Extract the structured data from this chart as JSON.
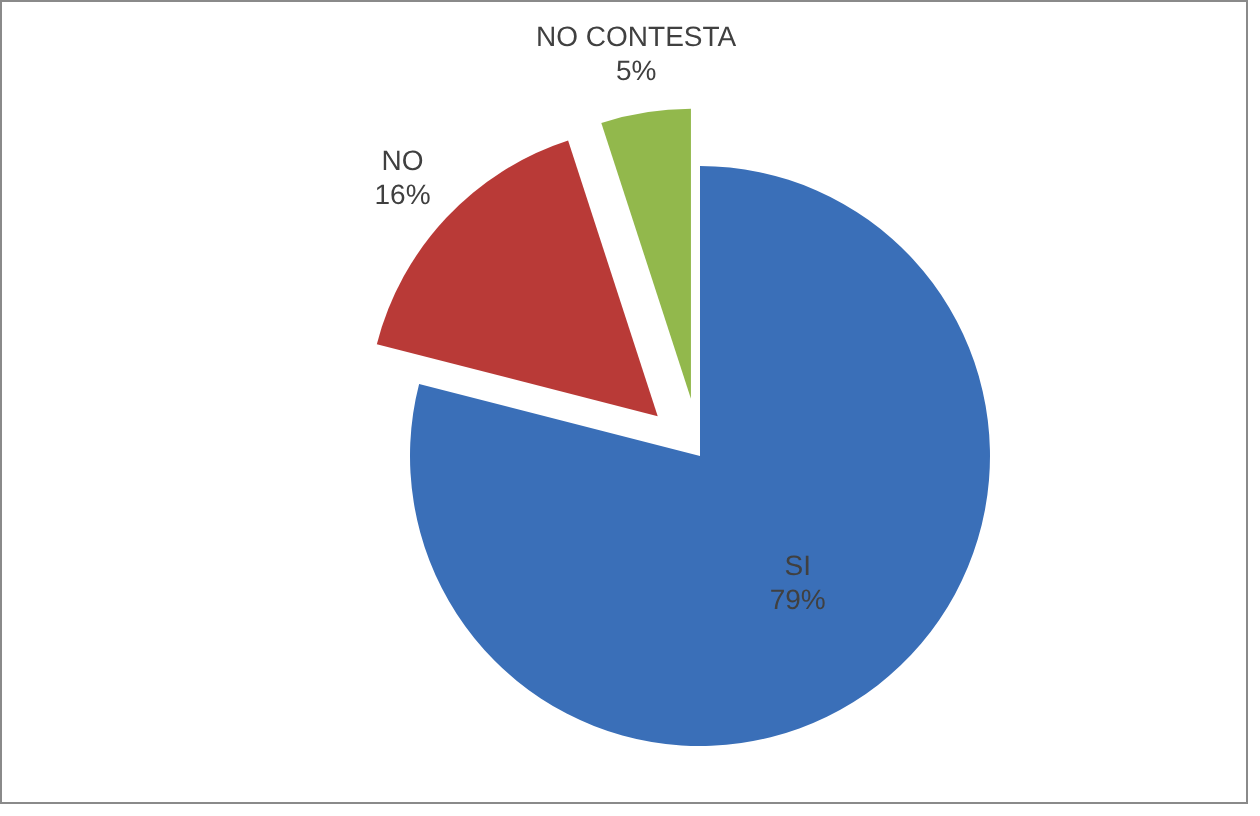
{
  "chart_data": {
    "type": "pie",
    "categories": [
      "SI",
      "NO",
      "NO CONTESTA"
    ],
    "values": [
      79,
      16,
      5
    ],
    "value_labels": [
      "79%",
      "16%",
      "5%"
    ],
    "colors": [
      "#3a6fb8",
      "#b93a37",
      "#92b84c"
    ],
    "legend": false
  }
}
